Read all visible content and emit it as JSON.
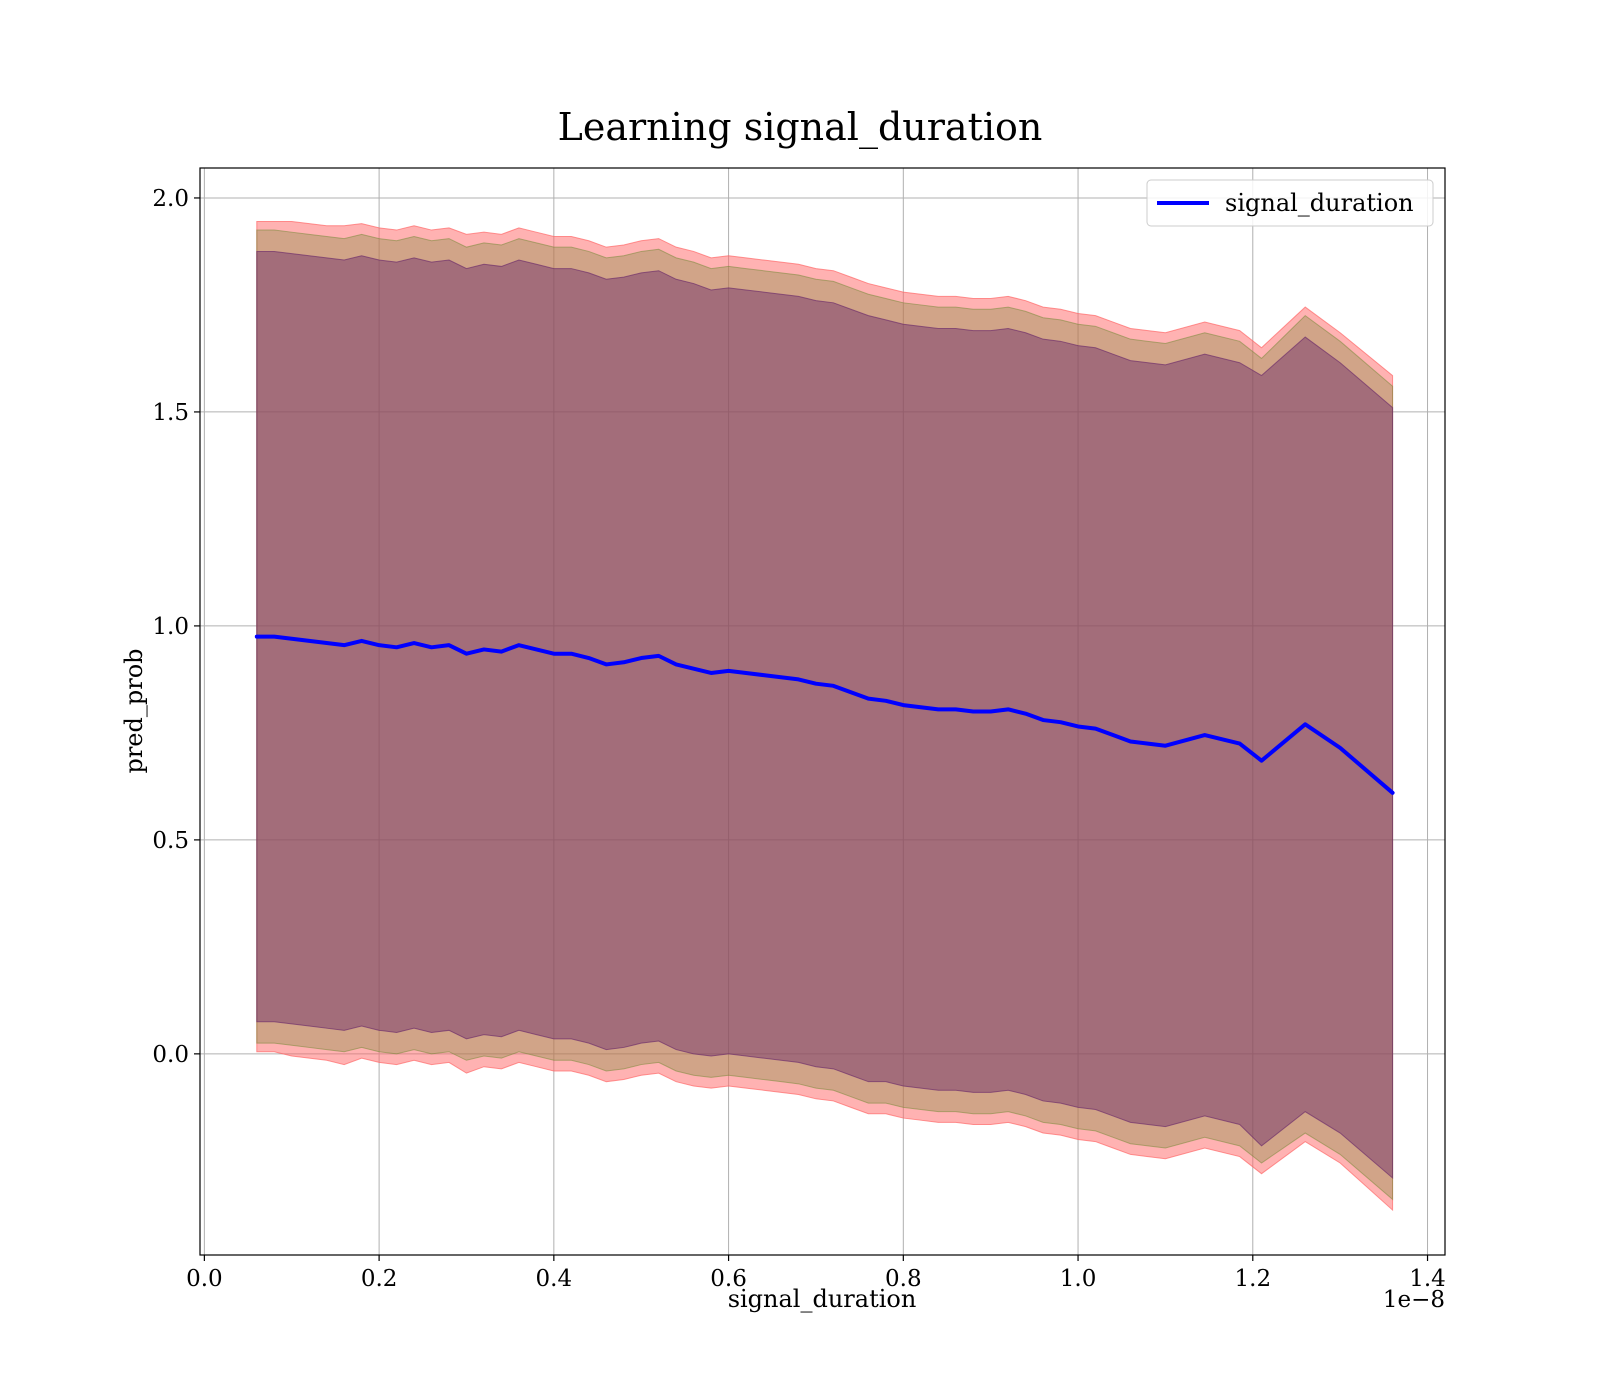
{
  "chart_data": {
    "type": "line",
    "title": "Learning signal_duration",
    "xlabel": "signal_duration",
    "ylabel": "pred_prob",
    "x_offset_label": "1e−8",
    "xlim": [
      -0.005,
      1.42
    ],
    "ylim": [
      -0.47,
      2.07
    ],
    "x_ticks": [
      0.0,
      0.2,
      0.4,
      0.6,
      0.8,
      1.0,
      1.2,
      1.4
    ],
    "x_tick_labels": [
      "0.0",
      "0.2",
      "0.4",
      "0.6",
      "0.8",
      "1.0",
      "1.2",
      "1.4"
    ],
    "y_ticks": [
      0.0,
      0.5,
      1.0,
      1.5,
      2.0
    ],
    "y_tick_labels": [
      "0.0",
      "0.5",
      "1.0",
      "1.5",
      "2.0"
    ],
    "grid": true,
    "legend_position": "top-right",
    "series": [
      {
        "name": "signal_duration",
        "color": "#0000ff",
        "x": [
          0.06,
          0.08,
          0.1,
          0.12,
          0.14,
          0.16,
          0.18,
          0.2,
          0.22,
          0.24,
          0.26,
          0.28,
          0.3,
          0.32,
          0.34,
          0.36,
          0.38,
          0.4,
          0.42,
          0.44,
          0.46,
          0.48,
          0.5,
          0.52,
          0.54,
          0.56,
          0.58,
          0.6,
          0.62,
          0.64,
          0.66,
          0.68,
          0.7,
          0.72,
          0.74,
          0.76,
          0.78,
          0.8,
          0.82,
          0.84,
          0.86,
          0.88,
          0.9,
          0.92,
          0.94,
          0.96,
          0.98,
          1.0,
          1.02,
          1.04,
          1.06,
          1.08,
          1.1,
          1.145,
          1.185,
          1.21,
          1.26,
          1.3,
          1.36
        ],
        "y": [
          0.975,
          0.975,
          0.97,
          0.965,
          0.96,
          0.955,
          0.965,
          0.955,
          0.95,
          0.96,
          0.95,
          0.955,
          0.935,
          0.945,
          0.94,
          0.955,
          0.945,
          0.935,
          0.935,
          0.925,
          0.91,
          0.915,
          0.925,
          0.93,
          0.91,
          0.9,
          0.89,
          0.895,
          0.89,
          0.885,
          0.88,
          0.875,
          0.865,
          0.86,
          0.845,
          0.83,
          0.825,
          0.815,
          0.81,
          0.805,
          0.805,
          0.8,
          0.8,
          0.805,
          0.795,
          0.78,
          0.775,
          0.765,
          0.76,
          0.745,
          0.73,
          0.725,
          0.72,
          0.745,
          0.725,
          0.685,
          0.77,
          0.715,
          0.61
        ]
      }
    ],
    "bands": [
      {
        "sigma": 3,
        "color": "#ff6666",
        "opacity": 0.5,
        "half_width": [
          0.97,
          0.97,
          0.975,
          0.975,
          0.975,
          0.98,
          0.975,
          0.975,
          0.975,
          0.975,
          0.975,
          0.975,
          0.98,
          0.975,
          0.975,
          0.975,
          0.975,
          0.975,
          0.975,
          0.975,
          0.975,
          0.975,
          0.975,
          0.975,
          0.975,
          0.975,
          0.97,
          0.97,
          0.97,
          0.97,
          0.97,
          0.97,
          0.97,
          0.97,
          0.97,
          0.97,
          0.965,
          0.965,
          0.965,
          0.965,
          0.965,
          0.965,
          0.965,
          0.965,
          0.965,
          0.965,
          0.965,
          0.965,
          0.965,
          0.965,
          0.965,
          0.965,
          0.965,
          0.965,
          0.965,
          0.965,
          0.975,
          0.97,
          0.975
        ]
      },
      {
        "sigma": 2,
        "color": "#7a8a3a",
        "opacity": 0.35,
        "half_width": [
          0.95,
          0.95,
          0.95,
          0.95,
          0.95,
          0.95,
          0.95,
          0.95,
          0.95,
          0.95,
          0.95,
          0.95,
          0.95,
          0.95,
          0.95,
          0.95,
          0.95,
          0.95,
          0.95,
          0.95,
          0.95,
          0.95,
          0.95,
          0.95,
          0.95,
          0.95,
          0.945,
          0.945,
          0.945,
          0.945,
          0.945,
          0.945,
          0.945,
          0.945,
          0.945,
          0.945,
          0.94,
          0.94,
          0.94,
          0.94,
          0.94,
          0.94,
          0.94,
          0.94,
          0.94,
          0.94,
          0.94,
          0.94,
          0.94,
          0.94,
          0.94,
          0.94,
          0.94,
          0.94,
          0.94,
          0.94,
          0.955,
          0.95,
          0.95
        ]
      },
      {
        "sigma": 1,
        "color": "#6a2a6a",
        "opacity": 0.45,
        "half_width": [
          0.9,
          0.9,
          0.9,
          0.9,
          0.9,
          0.9,
          0.9,
          0.9,
          0.9,
          0.9,
          0.9,
          0.9,
          0.9,
          0.9,
          0.9,
          0.9,
          0.9,
          0.9,
          0.9,
          0.9,
          0.9,
          0.9,
          0.9,
          0.9,
          0.9,
          0.9,
          0.895,
          0.895,
          0.895,
          0.895,
          0.895,
          0.895,
          0.895,
          0.895,
          0.895,
          0.895,
          0.89,
          0.89,
          0.89,
          0.89,
          0.89,
          0.89,
          0.89,
          0.89,
          0.89,
          0.89,
          0.89,
          0.89,
          0.89,
          0.89,
          0.89,
          0.89,
          0.89,
          0.89,
          0.89,
          0.9,
          0.905,
          0.9,
          0.9
        ]
      }
    ]
  }
}
